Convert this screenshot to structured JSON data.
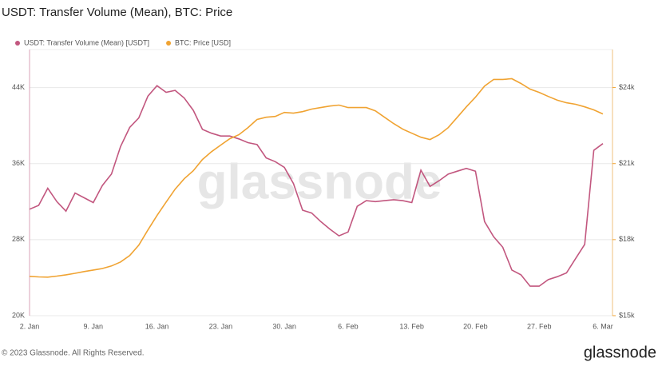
{
  "chart_data": {
    "type": "line",
    "title": "USDT: Transfer Volume (Mean), BTC: Price",
    "watermark": "glassnode",
    "footer": "© 2023 Glassnode. All Rights Reserved.",
    "logo": "glassnode",
    "categories": [
      "2. Jan",
      null,
      null,
      null,
      null,
      null,
      null,
      "9. Jan",
      null,
      null,
      null,
      null,
      null,
      null,
      "16. Jan",
      null,
      null,
      null,
      null,
      null,
      null,
      "23. Jan",
      null,
      null,
      null,
      null,
      null,
      null,
      "30. Jan",
      null,
      null,
      null,
      null,
      null,
      null,
      "6. Feb",
      null,
      null,
      null,
      null,
      null,
      null,
      "13. Feb",
      null,
      null,
      null,
      null,
      null,
      null,
      "20. Feb",
      null,
      null,
      null,
      null,
      null,
      null,
      "27. Feb",
      null,
      null,
      null,
      null,
      null,
      null,
      "6. Mar"
    ],
    "series": [
      {
        "name": "USDT: Transfer Volume (Mean) [USDT]",
        "color": "#c2577f",
        "values": [
          31200,
          31600,
          33400,
          32000,
          31000,
          32900,
          32400,
          31900,
          33700,
          34900,
          37800,
          39800,
          40800,
          43100,
          44200,
          43500,
          43700,
          42900,
          41600,
          39600,
          39200,
          38900,
          38900,
          38600,
          38200,
          38000,
          36600,
          36200,
          35600,
          33900,
          31100,
          30800,
          29900,
          29100,
          28400,
          28800,
          31500,
          32100,
          32000,
          32100,
          32200,
          32100,
          31900,
          35300,
          33600,
          34200,
          34900,
          35200,
          35500,
          35200,
          29900,
          28300,
          27200,
          24800,
          24300,
          23100,
          23100,
          23800,
          24100,
          24500,
          26000,
          27500,
          37400,
          38100
        ]
      },
      {
        "name": "BTC: Price [USD]",
        "color": "#f0a332",
        "axis": "y2",
        "values": [
          16550,
          16530,
          16520,
          16560,
          16610,
          16670,
          16740,
          16800,
          16860,
          16960,
          17120,
          17370,
          17780,
          18380,
          18950,
          19480,
          19990,
          20400,
          20720,
          21160,
          21470,
          21730,
          21980,
          22140,
          22420,
          22740,
          22830,
          22860,
          23020,
          22990,
          23050,
          23150,
          23210,
          23270,
          23310,
          23210,
          23210,
          23210,
          23080,
          22830,
          22580,
          22360,
          22200,
          22040,
          21950,
          22140,
          22420,
          22830,
          23240,
          23620,
          24060,
          24320,
          24320,
          24350,
          24160,
          23940,
          23810,
          23650,
          23500,
          23400,
          23340,
          23240,
          23120,
          22960
        ]
      }
    ],
    "ylim": [
      20000,
      48000
    ],
    "yticks": [
      {
        "value": 20000,
        "label": "20K"
      },
      {
        "value": 28000,
        "label": "28K"
      },
      {
        "value": 36000,
        "label": "36K"
      },
      {
        "value": 44000,
        "label": "44K"
      }
    ],
    "y2lim": [
      15000,
      25500
    ],
    "y2ticks": [
      {
        "value": 15000,
        "label": "$15k"
      },
      {
        "value": 18000,
        "label": "$18k"
      },
      {
        "value": 21000,
        "label": "$21k"
      },
      {
        "value": 24000,
        "label": "$24k"
      }
    ],
    "grid": true
  }
}
